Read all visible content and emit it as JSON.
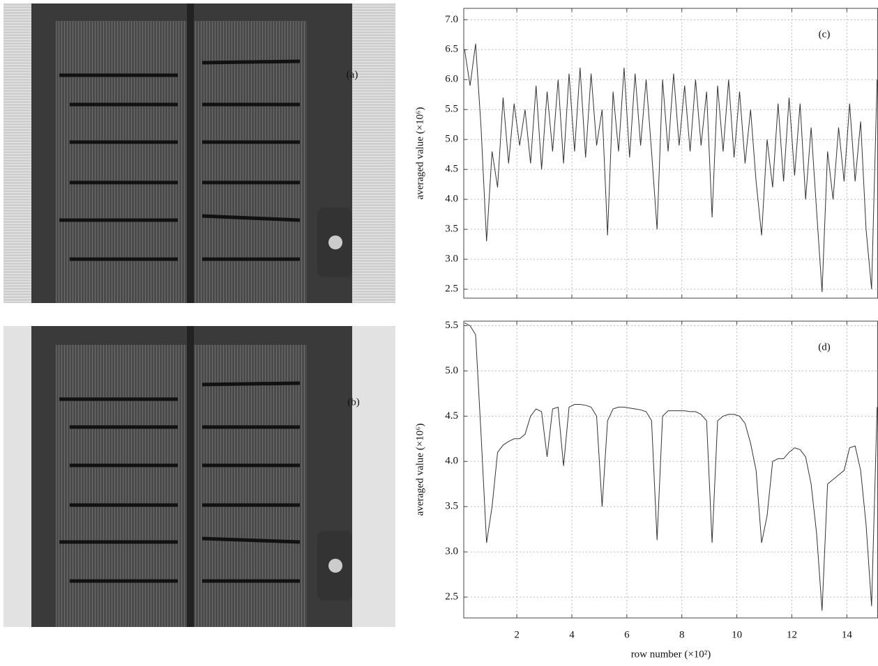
{
  "images": [
    {
      "label": "(a)"
    },
    {
      "label": "(b)"
    }
  ],
  "chart_data": [
    {
      "type": "line",
      "annotation": "(c)",
      "y_label": "averaged value  (×10⁶)",
      "grid": true,
      "color": "#333333",
      "xlim": [
        0.07,
        15.12
      ],
      "ylim": [
        2.35,
        7.19
      ],
      "yticks": [
        2.5,
        {
          "value": 3,
          "label": "3.0"
        },
        3.5,
        {
          "value": 4,
          "label": "4.0"
        },
        4.5,
        {
          "value": 5,
          "label": "5.0"
        },
        5.5,
        {
          "value": 6,
          "label": "6.0"
        },
        6.5,
        {
          "value": 7,
          "label": "7.0"
        }
      ],
      "x": [
        0.1,
        0.3,
        0.5,
        0.7,
        0.9,
        1.1,
        1.3,
        1.5,
        1.7,
        1.9,
        2.1,
        2.3,
        2.5,
        2.7,
        2.9,
        3.1,
        3.3,
        3.5,
        3.7,
        3.9,
        4.1,
        4.3,
        4.5,
        4.7,
        4.9,
        5.1,
        5.3,
        5.5,
        5.7,
        5.9,
        6.1,
        6.3,
        6.5,
        6.7,
        6.9,
        7.1,
        7.3,
        7.5,
        7.7,
        7.9,
        8.1,
        8.3,
        8.5,
        8.7,
        8.9,
        9.1,
        9.3,
        9.5,
        9.7,
        9.9,
        10.1,
        10.3,
        10.5,
        10.7,
        10.9,
        11.1,
        11.3,
        11.5,
        11.7,
        11.9,
        12.1,
        12.3,
        12.5,
        12.7,
        12.9,
        13.1,
        13.3,
        13.5,
        13.7,
        13.9,
        14.1,
        14.3,
        14.5,
        14.7,
        14.9,
        15.1
      ],
      "values": [
        6.5,
        5.9,
        6.6,
        5.2,
        3.3,
        4.8,
        4.2,
        5.7,
        4.6,
        5.6,
        4.9,
        5.5,
        4.6,
        5.9,
        4.5,
        5.8,
        4.8,
        6.0,
        4.6,
        6.1,
        4.8,
        6.2,
        4.7,
        6.1,
        4.9,
        5.5,
        3.4,
        5.8,
        4.8,
        6.2,
        4.7,
        6.1,
        4.9,
        6.0,
        4.8,
        3.5,
        6.0,
        4.8,
        6.1,
        4.9,
        5.9,
        4.8,
        6.0,
        4.9,
        5.8,
        3.7,
        5.9,
        4.8,
        6.0,
        4.7,
        5.8,
        4.6,
        5.5,
        4.3,
        3.4,
        5.0,
        4.2,
        5.6,
        4.3,
        5.7,
        4.4,
        5.6,
        4.0,
        5.2,
        3.8,
        2.45,
        4.8,
        4.0,
        5.2,
        4.3,
        5.6,
        4.3,
        5.3,
        3.5,
        2.5,
        6.0
      ]
    },
    {
      "type": "line",
      "annotation": "(d)",
      "x_label": "row number  (×10²)",
      "y_label": "averaged value  (×10⁶)",
      "grid": true,
      "color": "#333333",
      "xlim": [
        0.07,
        15.12
      ],
      "ylim": [
        2.27,
        5.55
      ],
      "xticks": [
        2,
        4,
        6,
        8,
        10,
        12,
        14
      ],
      "yticks": [
        2.5,
        {
          "value": 3,
          "label": "3.0"
        },
        3.5,
        {
          "value": 4,
          "label": "4.0"
        },
        4.5,
        {
          "value": 5,
          "label": "5.0"
        },
        5.5
      ],
      "x": [
        0.1,
        0.3,
        0.5,
        0.7,
        0.9,
        1.1,
        1.3,
        1.5,
        1.7,
        1.9,
        2.1,
        2.3,
        2.5,
        2.7,
        2.9,
        3.1,
        3.3,
        3.5,
        3.7,
        3.9,
        4.1,
        4.3,
        4.5,
        4.7,
        4.9,
        5.1,
        5.3,
        5.5,
        5.7,
        5.9,
        6.1,
        6.3,
        6.5,
        6.7,
        6.9,
        7.1,
        7.3,
        7.5,
        7.7,
        7.9,
        8.1,
        8.3,
        8.5,
        8.7,
        8.9,
        9.1,
        9.3,
        9.5,
        9.7,
        9.9,
        10.1,
        10.3,
        10.5,
        10.7,
        10.9,
        11.1,
        11.3,
        11.5,
        11.7,
        11.9,
        12.1,
        12.3,
        12.5,
        12.7,
        12.9,
        13.1,
        13.3,
        13.5,
        13.7,
        13.9,
        14.1,
        14.3,
        14.5,
        14.7,
        14.9,
        15.1
      ],
      "values": [
        5.53,
        5.5,
        5.4,
        4.3,
        3.1,
        3.5,
        4.1,
        4.18,
        4.22,
        4.25,
        4.25,
        4.3,
        4.5,
        4.58,
        4.55,
        4.05,
        4.58,
        4.6,
        3.95,
        4.6,
        4.63,
        4.63,
        4.62,
        4.6,
        4.5,
        3.5,
        4.45,
        4.58,
        4.6,
        4.6,
        4.59,
        4.58,
        4.57,
        4.55,
        4.45,
        3.13,
        4.5,
        4.56,
        4.56,
        4.56,
        4.56,
        4.55,
        4.55,
        4.52,
        4.45,
        3.1,
        4.45,
        4.5,
        4.52,
        4.52,
        4.5,
        4.42,
        4.2,
        3.9,
        3.1,
        3.4,
        4.0,
        4.03,
        4.03,
        4.1,
        4.15,
        4.13,
        4.05,
        3.75,
        3.2,
        2.35,
        3.75,
        3.8,
        3.85,
        3.9,
        4.15,
        4.17,
        3.9,
        3.3,
        2.4,
        4.6
      ]
    }
  ]
}
